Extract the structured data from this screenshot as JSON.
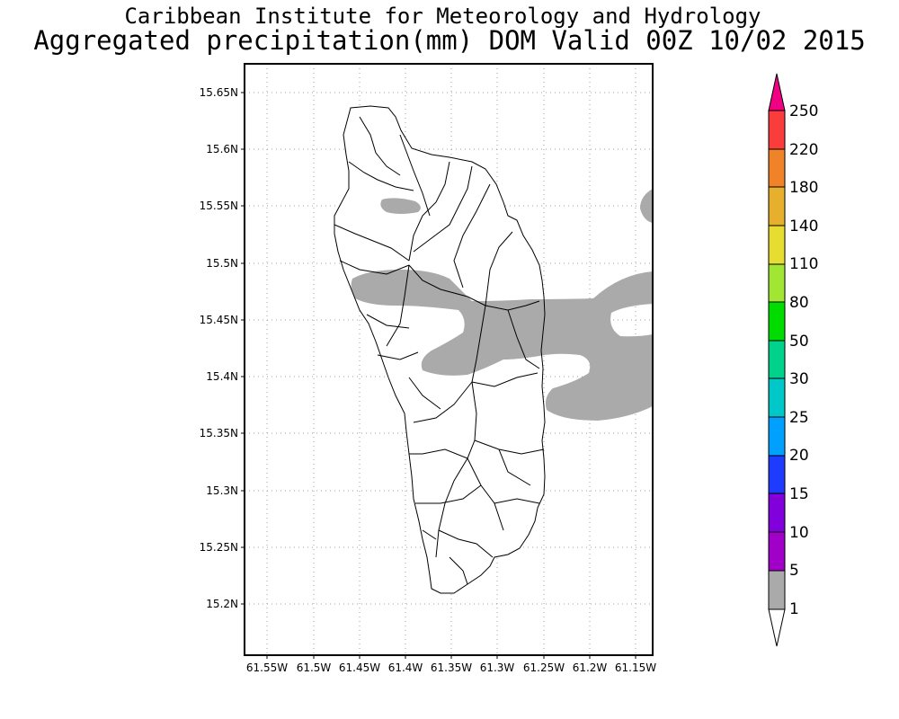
{
  "title": {
    "line1": "Caribbean Institute for Meteorology and Hydrology",
    "line2": "Aggregated precipitation(mm) DOM Valid 00Z 10/02 2015"
  },
  "map": {
    "lat_ticks": [
      "15.65N",
      "15.6N",
      "15.55N",
      "15.5N",
      "15.45N",
      "15.4N",
      "15.35N",
      "15.3N",
      "15.25N",
      "15.2N"
    ],
    "lon_ticks": [
      "61.55W",
      "61.5W",
      "61.45W",
      "61.4W",
      "61.35W",
      "61.3W",
      "61.25W",
      "61.2W",
      "61.15W"
    ],
    "lat_range": [
      15.155,
      15.67
    ],
    "lon_range": [
      61.575,
      61.135
    ],
    "grid": true
  },
  "colorbar": {
    "levels": [
      "1",
      "5",
      "10",
      "15",
      "20",
      "25",
      "30",
      "50",
      "80",
      "110",
      "140",
      "180",
      "220",
      "250"
    ],
    "colors": [
      "#aaaaaa",
      "#a000c8",
      "#8200dc",
      "#1e3cff",
      "#00a0ff",
      "#00c8c8",
      "#00d28c",
      "#00dc00",
      "#a0e632",
      "#e6dc32",
      "#e6af2d",
      "#f08228",
      "#fa3c3c",
      "#f00082"
    ]
  }
}
